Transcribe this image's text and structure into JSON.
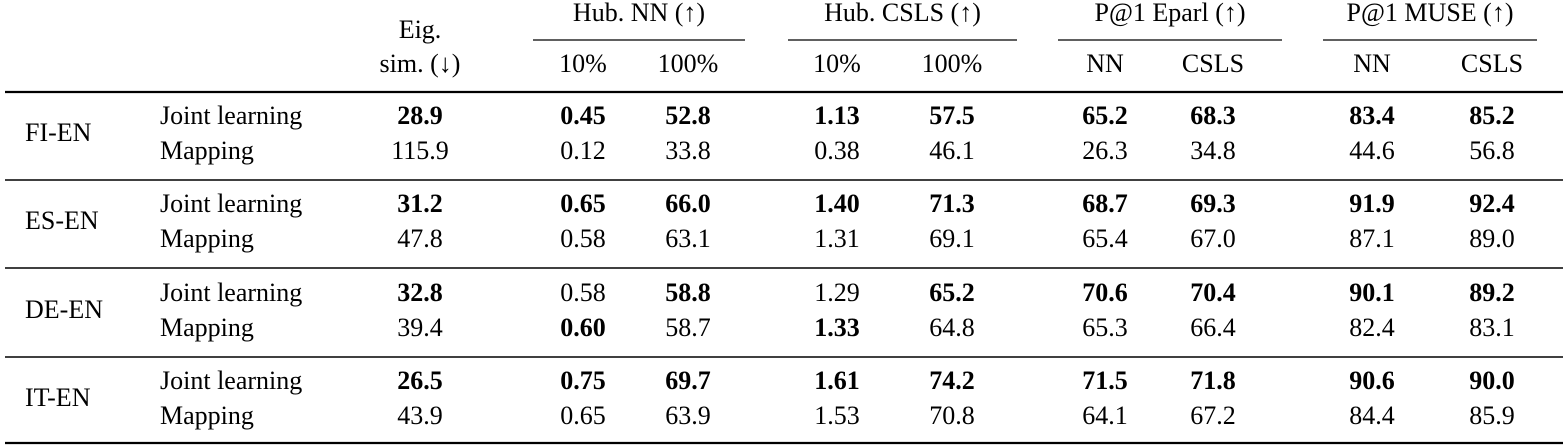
{
  "header": {
    "eig_label": [
      "Eig.",
      "sim. (↓)"
    ],
    "groups": [
      {
        "title": "Hub. NN (↑)",
        "subheads": [
          "10%",
          "100%"
        ]
      },
      {
        "title": "Hub. CSLS (↑)",
        "subheads": [
          "10%",
          "100%"
        ]
      },
      {
        "title": "P@1 Eparl (↑)",
        "subheads": [
          "NN",
          "CSLS"
        ]
      },
      {
        "title": "P@1 MUSE (↑)",
        "subheads": [
          "NN",
          "CSLS"
        ]
      }
    ]
  },
  "rows": [
    {
      "pair": "FI-EN",
      "methods": [
        {
          "name": "Joint learning",
          "cells": [
            "28.9",
            "0.45",
            "52.8",
            "1.13",
            "57.5",
            "65.2",
            "68.3",
            "83.4",
            "85.2"
          ],
          "bold": [
            true,
            true,
            true,
            true,
            true,
            true,
            true,
            true,
            true
          ]
        },
        {
          "name": "Mapping",
          "cells": [
            "115.9",
            "0.12",
            "33.8",
            "0.38",
            "46.1",
            "26.3",
            "34.8",
            "44.6",
            "56.8"
          ],
          "bold": [
            false,
            false,
            false,
            false,
            false,
            false,
            false,
            false,
            false
          ]
        }
      ]
    },
    {
      "pair": "ES-EN",
      "methods": [
        {
          "name": "Joint learning",
          "cells": [
            "31.2",
            "0.65",
            "66.0",
            "1.40",
            "71.3",
            "68.7",
            "69.3",
            "91.9",
            "92.4"
          ],
          "bold": [
            true,
            true,
            true,
            true,
            true,
            true,
            true,
            true,
            true
          ]
        },
        {
          "name": "Mapping",
          "cells": [
            "47.8",
            "0.58",
            "63.1",
            "1.31",
            "69.1",
            "65.4",
            "67.0",
            "87.1",
            "89.0"
          ],
          "bold": [
            false,
            false,
            false,
            false,
            false,
            false,
            false,
            false,
            false
          ]
        }
      ]
    },
    {
      "pair": "DE-EN",
      "methods": [
        {
          "name": "Joint learning",
          "cells": [
            "32.8",
            "0.58",
            "58.8",
            "1.29",
            "65.2",
            "70.6",
            "70.4",
            "90.1",
            "89.2"
          ],
          "bold": [
            true,
            false,
            true,
            false,
            true,
            true,
            true,
            true,
            true
          ]
        },
        {
          "name": "Mapping",
          "cells": [
            "39.4",
            "0.60",
            "58.7",
            "1.33",
            "64.8",
            "65.3",
            "66.4",
            "82.4",
            "83.1"
          ],
          "bold": [
            false,
            true,
            false,
            true,
            false,
            false,
            false,
            false,
            false
          ]
        }
      ]
    },
    {
      "pair": "IT-EN",
      "methods": [
        {
          "name": "Joint learning",
          "cells": [
            "26.5",
            "0.75",
            "69.7",
            "1.61",
            "74.2",
            "71.5",
            "71.8",
            "90.6",
            "90.0"
          ],
          "bold": [
            true,
            true,
            true,
            true,
            true,
            true,
            true,
            true,
            true
          ]
        },
        {
          "name": "Mapping",
          "cells": [
            "43.9",
            "0.65",
            "63.9",
            "1.53",
            "70.8",
            "64.1",
            "67.2",
            "84.4",
            "85.9"
          ],
          "bold": [
            false,
            false,
            false,
            false,
            false,
            false,
            false,
            false,
            false
          ]
        }
      ]
    }
  ]
}
